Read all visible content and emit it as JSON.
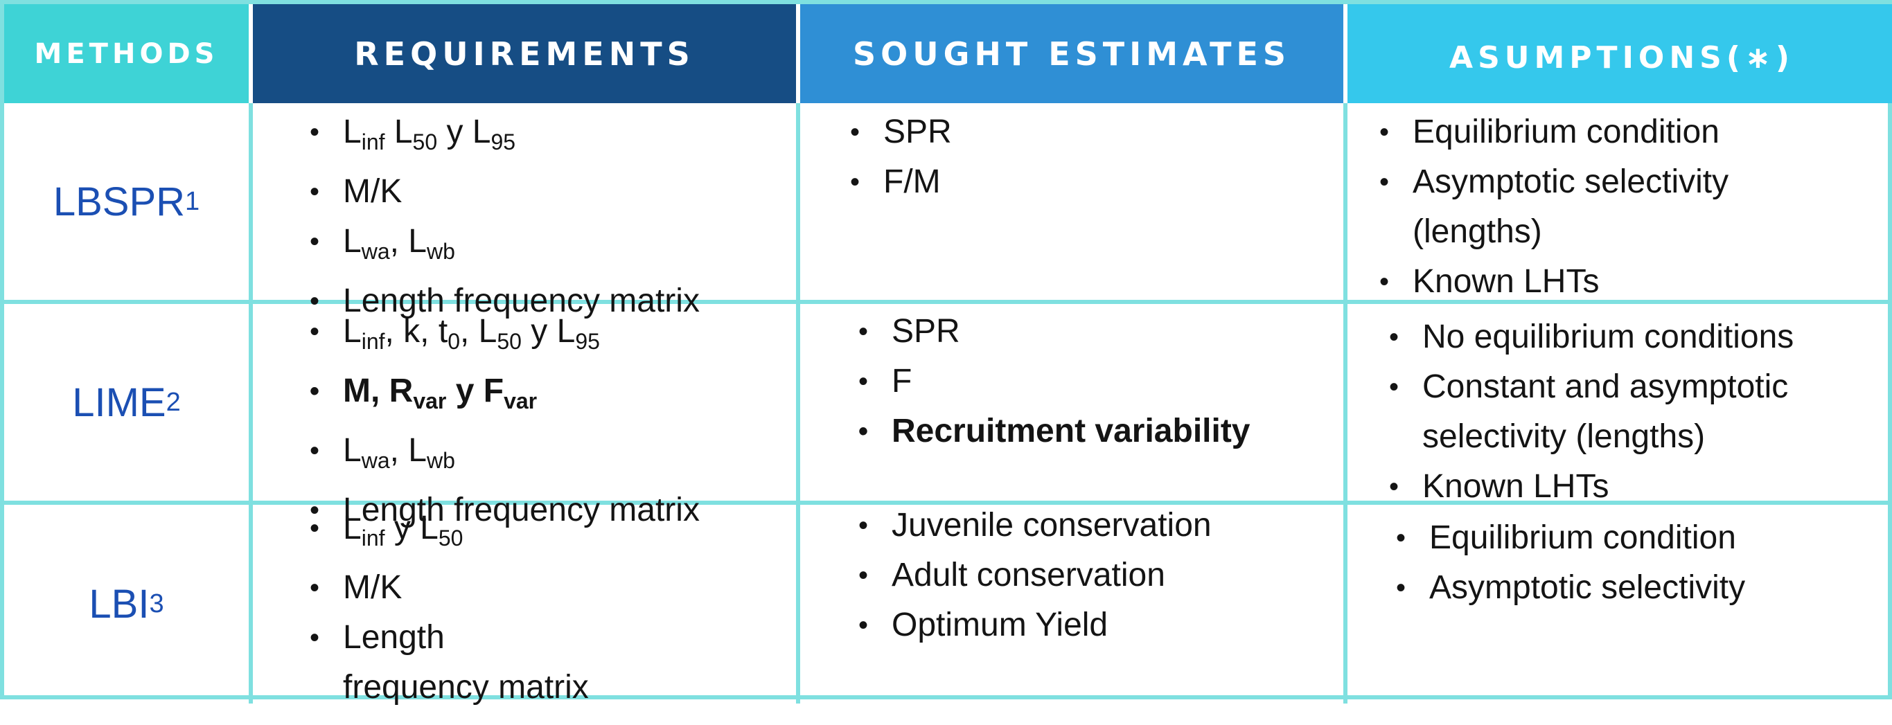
{
  "headers": {
    "methods": "METHODS",
    "requirements": "REQUIREMENTS",
    "sought_estimates": "SOUGHT ESTIMATES",
    "assumptions": "ASUMPTIONS(∗)"
  },
  "rows": [
    {
      "method": "LBSPR",
      "method_sup": "1",
      "requirements": {
        "r1": {
          "a": "L",
          "a_sub": "inf",
          "b": " L",
          "b_sub": "50",
          "c": " y L",
          "c_sub": "95"
        },
        "r2": "M/K",
        "r3": {
          "a": "L",
          "a_sub": "wa",
          "b": ", L",
          "b_sub": "wb"
        },
        "r4": "Length frequency matrix"
      },
      "sought": [
        "SPR",
        "F/M"
      ],
      "assumptions": [
        "Equilibrium condition",
        "Asymptotic selectivity",
        "(lengths)",
        "Known LHTs"
      ]
    },
    {
      "method": "LIME",
      "method_sup": "2",
      "requirements": {
        "r1": {
          "a": "L",
          "a_sub": "inf",
          "b": ", k, t",
          "b_sub": "0",
          "c": ", L",
          "c_sub": "50",
          "d": " y L",
          "d_sub": "95"
        },
        "r2": {
          "a": "M, R",
          "a_sub": "var",
          "b": " y F",
          "b_sub": "var"
        },
        "r3": {
          "a": "L",
          "a_sub": "wa",
          "b": ", L",
          "b_sub": "wb"
        },
        "r4": "Length frequency matrix"
      },
      "sought": [
        "SPR",
        "F",
        "Recruitment variability"
      ],
      "assumptions": [
        "No equilibrium conditions",
        "Constant and asymptotic",
        "selectivity (lengths)",
        "Known LHTs"
      ]
    },
    {
      "method": "LBI",
      "method_sup": "3",
      "requirements": {
        "r1": {
          "a": "L",
          "a_sub": "inf",
          "b": " y L",
          "b_sub": "50"
        },
        "r2": "M/K",
        "r3": "Length",
        "r3b": "frequency matrix"
      },
      "sought": [
        "Juvenile conservation",
        "Adult conservation",
        "Optimum Yield"
      ],
      "assumptions": [
        "Equilibrium condition",
        "Asymptotic selectivity"
      ]
    }
  ]
}
